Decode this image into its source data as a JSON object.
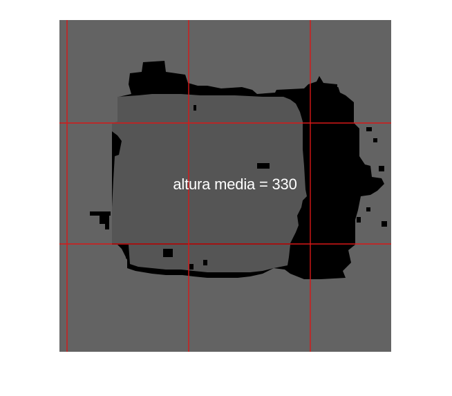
{
  "image": {
    "annotation_text": "altura media = 330",
    "colors": {
      "background": "#ffffff",
      "floor_gray": "#636363",
      "object_gray": "#555555",
      "shadow_black": "#000000",
      "grid_red": "#d81818",
      "text": "#ffffff"
    }
  }
}
